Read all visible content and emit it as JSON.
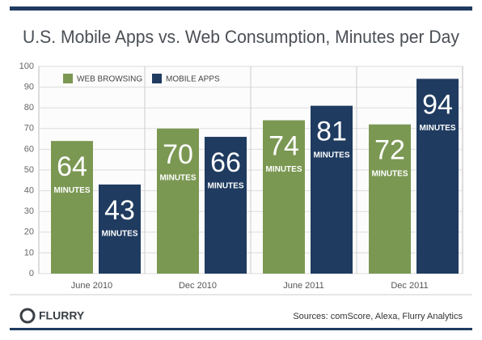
{
  "chart_data": {
    "type": "bar",
    "title": "U.S. Mobile Apps vs. Web Consumption, Minutes per Day",
    "categories": [
      "June 2010",
      "Dec 2010",
      "June 2011",
      "Dec 2011"
    ],
    "series": [
      {
        "name": "WEB BROWSING",
        "color": "#7b9853",
        "values": [
          64,
          70,
          74,
          72
        ]
      },
      {
        "name": "MOBILE APPS",
        "color": "#1f3b60",
        "values": [
          43,
          66,
          81,
          94
        ]
      }
    ],
    "bar_label_unit": "MINUTES",
    "ylim": [
      0,
      100
    ],
    "yticks": [
      0,
      10,
      20,
      30,
      40,
      50,
      60,
      70,
      80,
      90,
      100
    ],
    "grid": true,
    "legend": "top-left",
    "logo": "FLURRY",
    "source": "Sources: comScore, Alexa, Flurry Analytics"
  }
}
